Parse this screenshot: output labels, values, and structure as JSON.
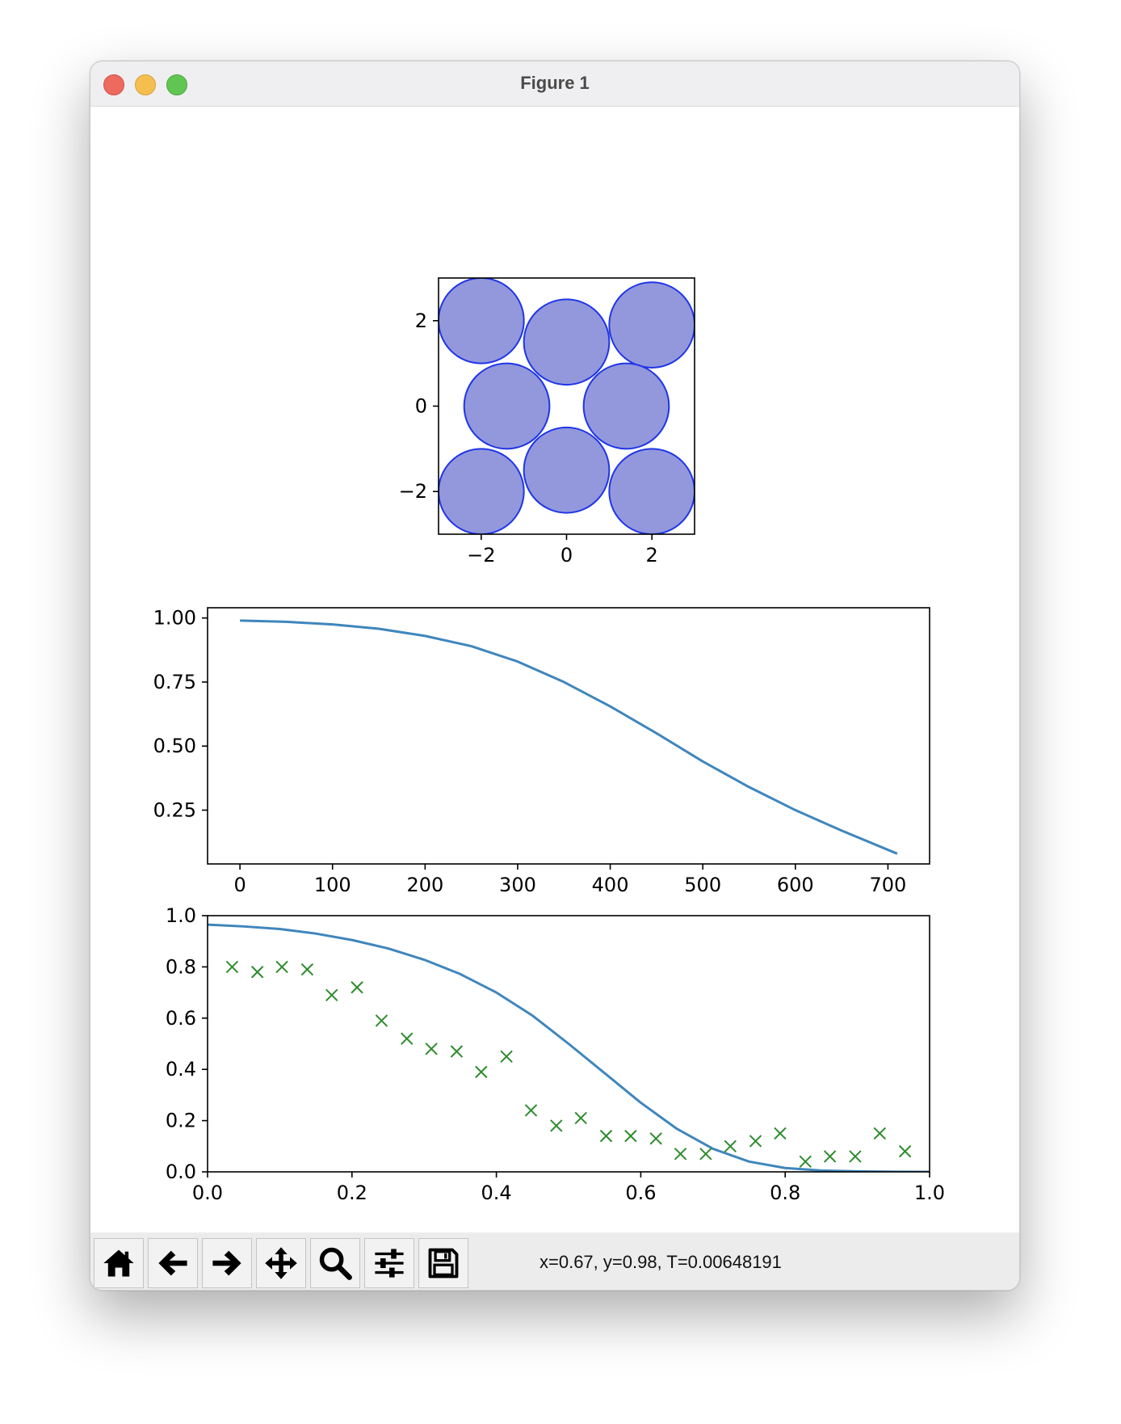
{
  "window": {
    "title": "Figure 1"
  },
  "chart_data": [
    {
      "type": "scatter",
      "subtype": "circles",
      "title": "",
      "xlabel": "",
      "ylabel": "",
      "xlim": [
        -3,
        3
      ],
      "ylim": [
        -3,
        3
      ],
      "xticks": [
        -2,
        0,
        2
      ],
      "yticks": [
        -2,
        0,
        2
      ],
      "circle_radius": 1,
      "face_color": "#9298db",
      "edge_color": "#1f35e8",
      "circles": [
        {
          "x": -2.0,
          "y": 2.0
        },
        {
          "x": 0.0,
          "y": 1.5
        },
        {
          "x": 2.0,
          "y": 1.9
        },
        {
          "x": -1.4,
          "y": 0.0
        },
        {
          "x": 1.4,
          "y": 0.0
        },
        {
          "x": -2.0,
          "y": -2.0
        },
        {
          "x": 0.0,
          "y": -1.5
        },
        {
          "x": 2.0,
          "y": -2.0
        }
      ]
    },
    {
      "type": "line",
      "title": "",
      "xlabel": "",
      "ylabel": "",
      "xlim": [
        -35,
        745
      ],
      "ylim": [
        0.04,
        1.04
      ],
      "xticks": [
        0,
        100,
        200,
        300,
        400,
        500,
        600,
        700
      ],
      "yticks": [
        0.25,
        0.5,
        0.75,
        1.0
      ],
      "yticklabels": [
        "0.25",
        "0.50",
        "0.75",
        "1.00"
      ],
      "color": "#3f86bc",
      "x": [
        0,
        50,
        100,
        150,
        200,
        250,
        300,
        350,
        400,
        450,
        500,
        550,
        600,
        650,
        710
      ],
      "y": [
        0.99,
        0.985,
        0.975,
        0.958,
        0.93,
        0.89,
        0.83,
        0.75,
        0.655,
        0.55,
        0.44,
        0.34,
        0.25,
        0.17,
        0.08
      ]
    },
    {
      "type": "line+scatter",
      "title": "",
      "xlabel": "",
      "ylabel": "",
      "xlim": [
        0.0,
        1.0
      ],
      "ylim": [
        0.0,
        1.0
      ],
      "xticks": [
        0.0,
        0.2,
        0.4,
        0.6,
        0.8,
        1.0
      ],
      "yticks": [
        0.0,
        0.2,
        0.4,
        0.6,
        0.8,
        1.0
      ],
      "xticklabels": [
        "0.0",
        "0.2",
        "0.4",
        "0.6",
        "0.8",
        "1.0"
      ],
      "yticklabels": [
        "0.0",
        "0.2",
        "0.4",
        "0.6",
        "0.8",
        "1.0"
      ],
      "line_color": "#3f86bc",
      "marker_color": "#2e8b2e",
      "line": {
        "x": [
          0.0,
          0.05,
          0.1,
          0.15,
          0.2,
          0.25,
          0.3,
          0.35,
          0.4,
          0.45,
          0.5,
          0.55,
          0.6,
          0.65,
          0.7,
          0.75,
          0.8,
          0.85,
          0.9,
          0.95,
          1.0
        ],
        "y": [
          0.965,
          0.958,
          0.948,
          0.93,
          0.905,
          0.872,
          0.828,
          0.772,
          0.7,
          0.61,
          0.5,
          0.385,
          0.27,
          0.168,
          0.09,
          0.04,
          0.015,
          0.005,
          0.002,
          0.0005,
          0.0
        ]
      },
      "markers": {
        "x": [
          0.034,
          0.069,
          0.103,
          0.138,
          0.172,
          0.207,
          0.241,
          0.276,
          0.31,
          0.345,
          0.379,
          0.414,
          0.448,
          0.483,
          0.517,
          0.552,
          0.586,
          0.621,
          0.655,
          0.69,
          0.724,
          0.759,
          0.793,
          0.828,
          0.862,
          0.897,
          0.931,
          0.966
        ],
        "y": [
          0.8,
          0.78,
          0.8,
          0.79,
          0.69,
          0.72,
          0.59,
          0.52,
          0.48,
          0.47,
          0.39,
          0.45,
          0.24,
          0.18,
          0.21,
          0.14,
          0.14,
          0.13,
          0.07,
          0.07,
          0.1,
          0.12,
          0.15,
          0.04,
          0.06,
          0.06,
          0.15,
          0.08
        ]
      }
    }
  ],
  "toolbar": {
    "buttons": [
      {
        "name": "home-icon"
      },
      {
        "name": "back-arrow-icon"
      },
      {
        "name": "forward-arrow-icon"
      },
      {
        "name": "pan-icon"
      },
      {
        "name": "zoom-icon"
      },
      {
        "name": "configure-subplots-icon"
      },
      {
        "name": "save-icon"
      }
    ],
    "status": "x=0.67, y=0.98, T=0.00648191"
  }
}
